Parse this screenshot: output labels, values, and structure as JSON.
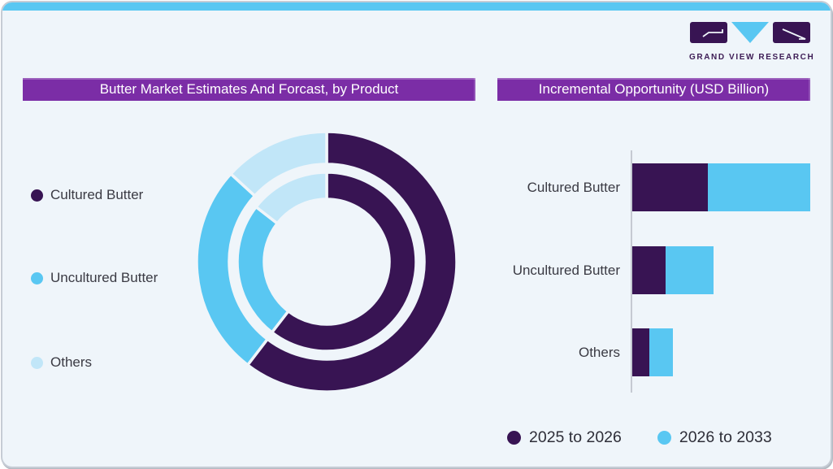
{
  "brand": {
    "logo_text": "GRAND VIEW RESEARCH",
    "logo_icon": "gvr-monogram"
  },
  "colors": {
    "accent_purple": "#7b2da6",
    "series_dark_purple": "#381453",
    "series_blue": "#59c7f2",
    "series_pale_blue": "#c1e6f8",
    "top_bar_blue": "#59c7f2",
    "card_background": "#eff5fa",
    "card_border": "#c6ccd5",
    "axis_gray": "#c5cad2",
    "label_text": "#3a3a43",
    "title_text": "#ffffff"
  },
  "chart_data": [
    {
      "type": "pie",
      "subtype": "double-ring donut",
      "title": "Butter Market Estimates And Forcast, by Product",
      "categories": [
        "Cultured Butter",
        "Uncultured Butter",
        "Others"
      ],
      "colors": [
        "#381453",
        "#59c7f2",
        "#c1e6f8"
      ],
      "rings": [
        {
          "name": "outer",
          "values_pct": [
            60.4,
            26.4,
            13.2
          ]
        },
        {
          "name": "inner",
          "values_pct": [
            60.5,
            25.0,
            14.5
          ]
        }
      ],
      "start_angle": "12-oclock",
      "direction": "clockwise",
      "data_labels": "none",
      "legend_position": "left"
    },
    {
      "type": "bar",
      "subtype": "horizontal stacked",
      "title": "Incremental Opportunity (USD Billion)",
      "categories": [
        "Cultured Butter",
        "Uncultured Butter",
        "Others"
      ],
      "series": [
        {
          "name": "2025 to 2026",
          "color": "#381453",
          "values": [
            93,
            41,
            21
          ]
        },
        {
          "name": "2026 to 2033",
          "color": "#59c7f2",
          "values": [
            126,
            59,
            29
          ]
        }
      ],
      "x_axis": {
        "max": 230,
        "tick_labels_shown": false,
        "gridlines": false
      },
      "value_units": "relative bar length (axis unlabeled in image)",
      "legend_position": "bottom"
    }
  ]
}
